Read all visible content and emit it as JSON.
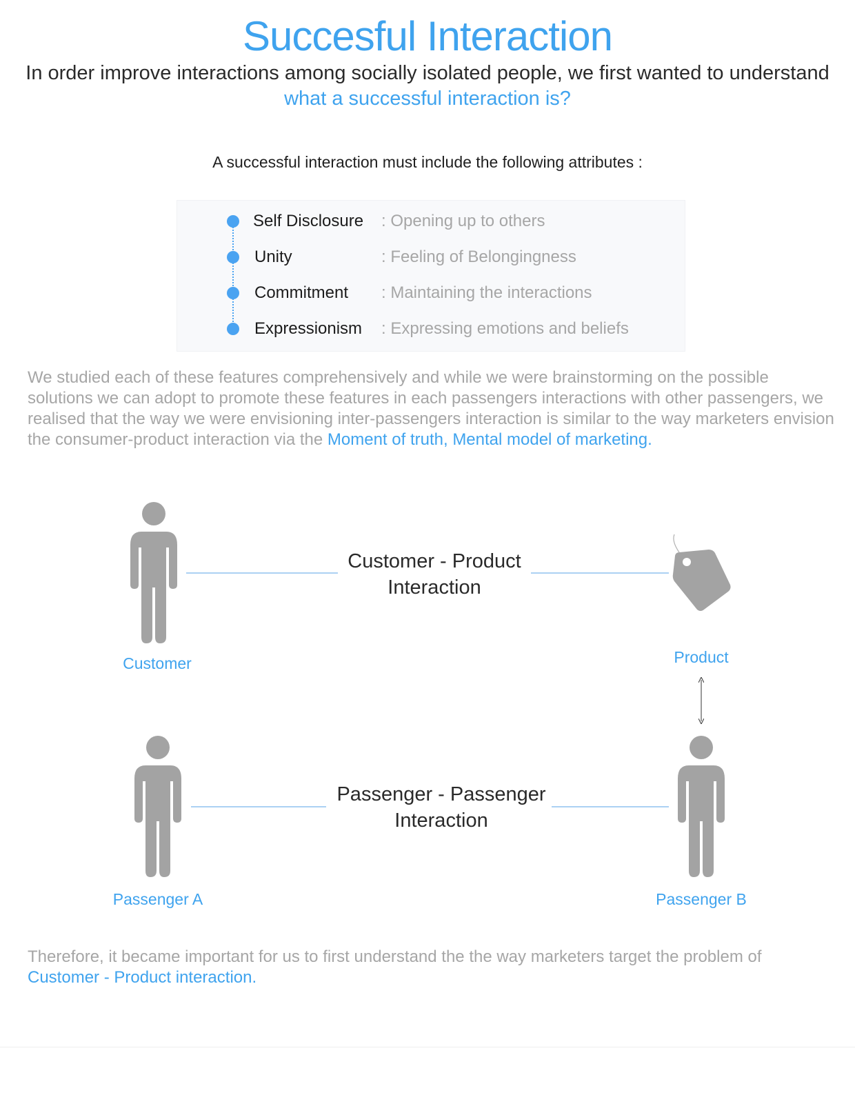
{
  "header": {
    "title": "Succesful Interaction",
    "intro_line1": "In order improve interactions among socially isolated people, we first wanted to understand",
    "intro_line2": "what a successful interaction is?"
  },
  "attributes_section": {
    "lead": "A successful interaction must include the following attributes :",
    "items": [
      {
        "name": "Self Disclosure",
        "desc": ": Opening up to others"
      },
      {
        "name": "Unity",
        "desc": ": Feeling of Belongingness"
      },
      {
        "name": "Commitment",
        "desc": ": Maintaining the interactions"
      },
      {
        "name": "Expressionism",
        "desc": ": Expressing emotions and beliefs"
      }
    ]
  },
  "study_paragraph": {
    "text": "We studied each of these features comprehensively and while we were brainstorming on the possible solutions we can adopt to promote these features in each passengers interactions with other passengers, we realised that the way we were envisioning inter-passengers interaction is similar to the way marketers envision the consumer-product interaction via the ",
    "highlight": "Moment of truth, Mental model of marketing."
  },
  "diagram": {
    "top": {
      "left_node": "Customer",
      "right_node": "Product",
      "relation_line1": "Customer - Product",
      "relation_line2": "Interaction"
    },
    "bottom": {
      "left_node": "Passenger A",
      "right_node": "Passenger B",
      "relation_line1": "Passenger - Passenger",
      "relation_line2": "Interaction"
    },
    "icons": [
      "person-icon",
      "price-tag-icon",
      "double-arrow-icon"
    ],
    "colors": {
      "icon_gray": "#a3a3a3",
      "accent": "#3fa3ee",
      "connector": "#8fc2ef"
    }
  },
  "conclusion": {
    "text": "Therefore, it became important for us to first understand the the way marketers target the problem of ",
    "highlight": "Customer - Product interaction."
  }
}
